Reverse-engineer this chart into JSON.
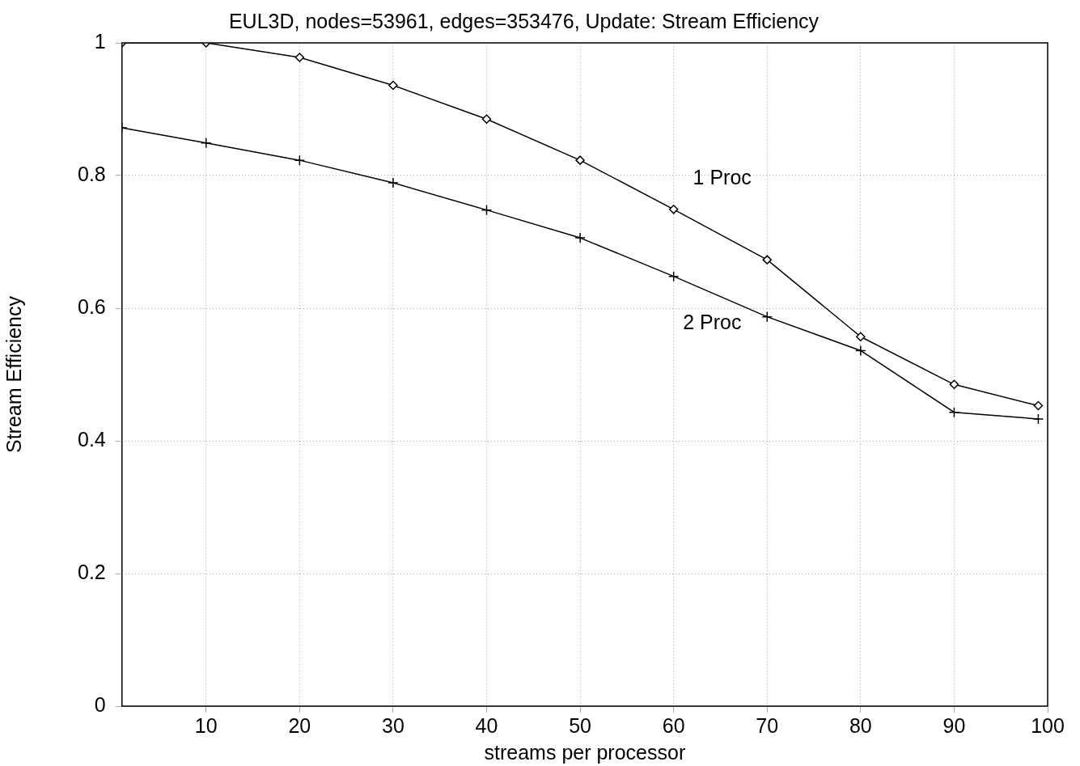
{
  "chart_data": {
    "type": "line",
    "title": "EUL3D, nodes=53961, edges=353476, Update: Stream Efficiency",
    "xlabel": "streams per processor",
    "ylabel": "Stream Efficiency",
    "x": [
      1,
      10,
      20,
      30,
      40,
      50,
      60,
      70,
      80,
      90,
      99
    ],
    "series": [
      {
        "name": "1 Proc",
        "color": "#000000",
        "marker": "diamond",
        "values": [
          1.0,
          1.0,
          0.978,
          0.936,
          0.885,
          0.823,
          0.749,
          0.673,
          0.557,
          0.485,
          0.453
        ]
      },
      {
        "name": "2 Proc",
        "color": "#000000",
        "marker": "cross",
        "values": [
          0.872,
          0.849,
          0.823,
          0.789,
          0.748,
          0.706,
          0.648,
          0.587,
          0.536,
          0.443,
          0.433
        ]
      }
    ],
    "xlim": [
      1,
      100
    ],
    "xticks": [
      10,
      20,
      30,
      40,
      50,
      60,
      70,
      80,
      90,
      100
    ],
    "ylim": [
      0,
      1
    ],
    "yticks": [
      0,
      0.2,
      0.4,
      0.6,
      0.8,
      1
    ],
    "grid": true,
    "legend": false,
    "line_style": "solid"
  }
}
